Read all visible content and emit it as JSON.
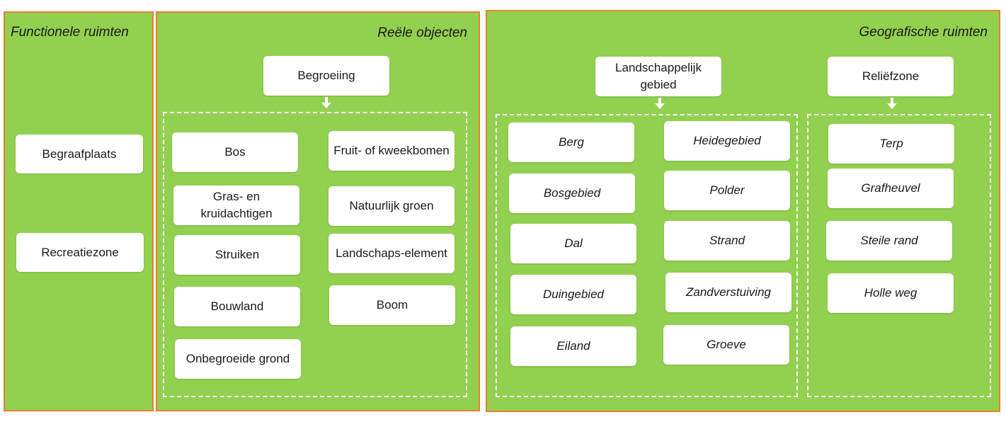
{
  "functionele": {
    "title": "Functionele ruimten",
    "items": [
      "Begraafplaats",
      "Recreatiezone"
    ]
  },
  "reele": {
    "title": "Reële objecten",
    "root": "Begroeiing",
    "col1": [
      "Bos",
      "Gras- en kruidachtigen",
      "Struiken",
      "Bouwland",
      "Onbegroeide grond"
    ],
    "col2": [
      "Fruit- of kweekbomen",
      "Natuurlijk groen",
      "Landschaps-element",
      "Boom"
    ]
  },
  "geografisch": {
    "title": "Geografische ruimten",
    "landschap": {
      "root": "Landschappelijk gebied",
      "col1": [
        "Berg",
        "Bosgebied",
        "Dal",
        "Duingebied",
        "Eiland"
      ],
      "col2": [
        "Heidegebied",
        "Polder",
        "Strand",
        "Zandverstuiving",
        "Groeve"
      ]
    },
    "relief": {
      "root": "Reliëfzone",
      "items": [
        "Terp",
        "Grafheuvel",
        "Steile rand",
        "Holle weg"
      ]
    }
  },
  "colors": {
    "panel_fill": "#92d050",
    "panel_border": "#ed7d31",
    "box_fill": "#ffffff"
  }
}
